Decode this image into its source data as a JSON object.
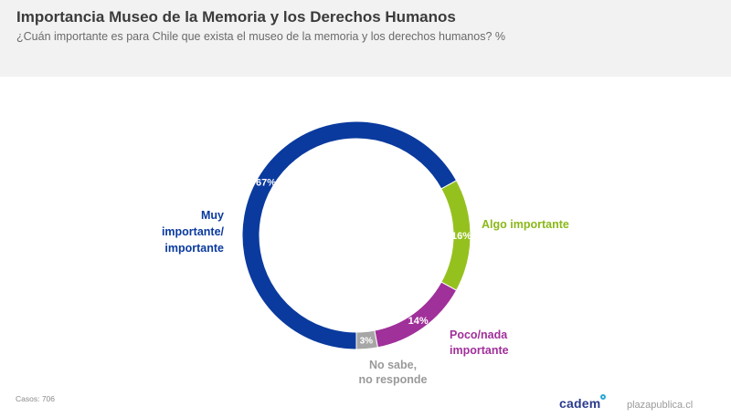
{
  "header": {
    "title": "Importancia Museo de la Memoria y los Derechos Humanos",
    "subtitle": "¿Cuán importante es para Chile que exista el museo de la memoria y los derechos humanos? %"
  },
  "footer": {
    "cases": "Casos: 706",
    "logo": "cadem",
    "site": "plazapublica.cl"
  },
  "chart_data": {
    "type": "pie",
    "donut": true,
    "title": "Importancia Museo de la Memoria y los Derechos Humanos",
    "subtitle": "¿Cuán importante es para Chile que exista el museo de la memoria y los derechos humanos? %",
    "unit": "%",
    "slices": [
      {
        "name": "Muy importante/ importante",
        "label_lines": [
          "Muy",
          "importante/",
          "importante"
        ],
        "value": 67,
        "value_label": "67%",
        "color": "#0a3a9e",
        "label_color": "#0a3a9e"
      },
      {
        "name": "Algo importante",
        "label_lines": [
          "Algo importante"
        ],
        "value": 16,
        "value_label": "16%",
        "color": "#95c11f",
        "label_color": "#8bb81a"
      },
      {
        "name": "Poco/nada importante",
        "label_lines": [
          "Poco/nada",
          "importante"
        ],
        "value": 14,
        "value_label": "14%",
        "color": "#a0309a",
        "label_color": "#a0309a"
      },
      {
        "name": "No sabe, no responde",
        "label_lines": [
          "No sabe,",
          "no responde"
        ],
        "value": 3,
        "value_label": "3%",
        "color": "#a6a6a6",
        "label_color": "#9a9a9a"
      }
    ]
  }
}
